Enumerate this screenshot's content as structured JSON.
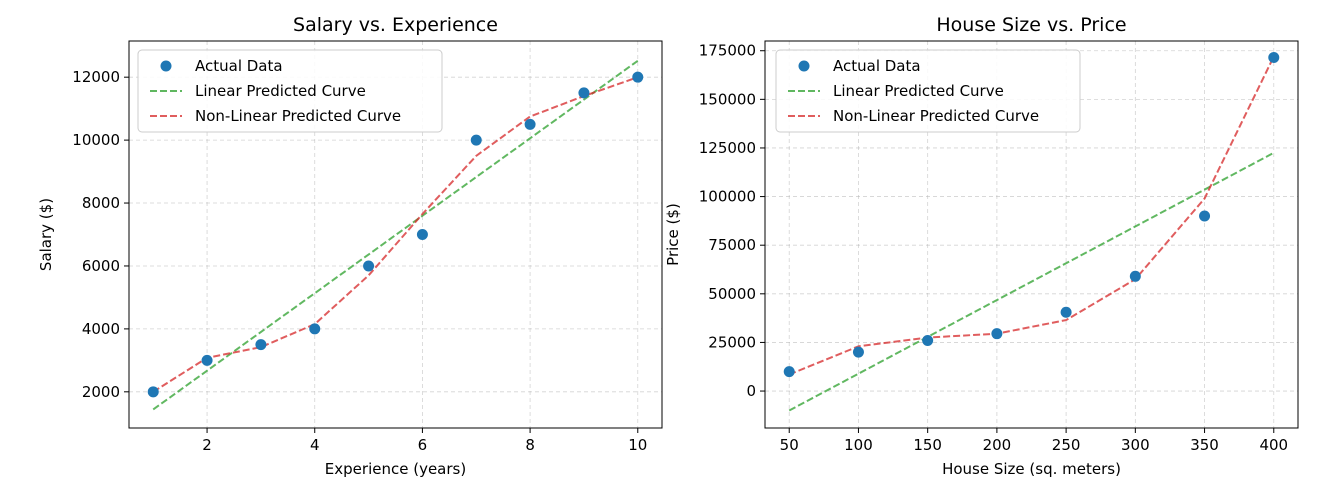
{
  "chart_data": [
    {
      "type": "scatter",
      "title": "Salary vs. Experience",
      "xlabel": "Experience (years)",
      "ylabel": "Salary ($)",
      "xlim": [
        0.55,
        10.45
      ],
      "ylim": [
        850,
        13150
      ],
      "xticks": [
        2,
        4,
        6,
        8,
        10
      ],
      "xtick_labels": [
        "2",
        "4",
        "6",
        "8",
        "10"
      ],
      "yticks": [
        2000,
        4000,
        6000,
        8000,
        10000,
        12000
      ],
      "ytick_labels": [
        "2000",
        "4000",
        "6000",
        "8000",
        "10000",
        "12000"
      ],
      "grid": true,
      "legend_position": "top-left",
      "series": [
        {
          "name": "Actual Data",
          "kind": "scatter",
          "color": "#1f77b4",
          "x": [
            1,
            2,
            3,
            4,
            5,
            6,
            7,
            8,
            9,
            10
          ],
          "y": [
            2000,
            3000,
            3500,
            4000,
            6000,
            7000,
            10000,
            10500,
            11500,
            12000
          ]
        },
        {
          "name": "Linear Predicted Curve",
          "kind": "dashed-line",
          "color": "#2ca02c",
          "x": [
            1,
            10
          ],
          "y": [
            1440,
            12520
          ]
        },
        {
          "name": "Non-Linear Predicted Curve",
          "kind": "dashed-line",
          "color": "#d62728",
          "x": [
            1,
            2,
            3,
            4,
            5,
            6,
            7,
            8,
            9,
            10
          ],
          "y": [
            2000,
            3080,
            3420,
            4150,
            5700,
            7650,
            9500,
            10750,
            11400,
            12000
          ]
        }
      ]
    },
    {
      "type": "scatter",
      "title": "House Size vs. Price",
      "xlabel": "House Size (sq. meters)",
      "ylabel": "Price ($)",
      "xlim": [
        32.5,
        417.5
      ],
      "ylim": [
        -19000,
        180000
      ],
      "xticks": [
        50,
        100,
        150,
        200,
        250,
        300,
        350,
        400
      ],
      "xtick_labels": [
        "50",
        "100",
        "150",
        "200",
        "250",
        "300",
        "350",
        "400"
      ],
      "yticks": [
        0,
        25000,
        50000,
        75000,
        100000,
        125000,
        150000,
        175000
      ],
      "ytick_labels": [
        "0",
        "25000",
        "50000",
        "75000",
        "100000",
        "125000",
        "150000",
        "175000"
      ],
      "grid": true,
      "legend_position": "top-left",
      "series": [
        {
          "name": "Actual Data",
          "kind": "scatter",
          "color": "#1f77b4",
          "x": [
            50,
            100,
            150,
            200,
            250,
            300,
            350,
            400
          ],
          "y": [
            10000,
            20000,
            26000,
            29500,
            40500,
            59000,
            90000,
            171500
          ]
        },
        {
          "name": "Linear Predicted Curve",
          "kind": "dashed-line",
          "color": "#2ca02c",
          "x": [
            50,
            400
          ],
          "y": [
            -10000,
            122500
          ]
        },
        {
          "name": "Non-Linear Predicted Curve",
          "kind": "dashed-line",
          "color": "#d62728",
          "x": [
            50,
            100,
            150,
            200,
            250,
            300,
            350,
            400
          ],
          "y": [
            8500,
            23000,
            27500,
            29500,
            36500,
            57500,
            99000,
            172000
          ]
        }
      ]
    }
  ]
}
